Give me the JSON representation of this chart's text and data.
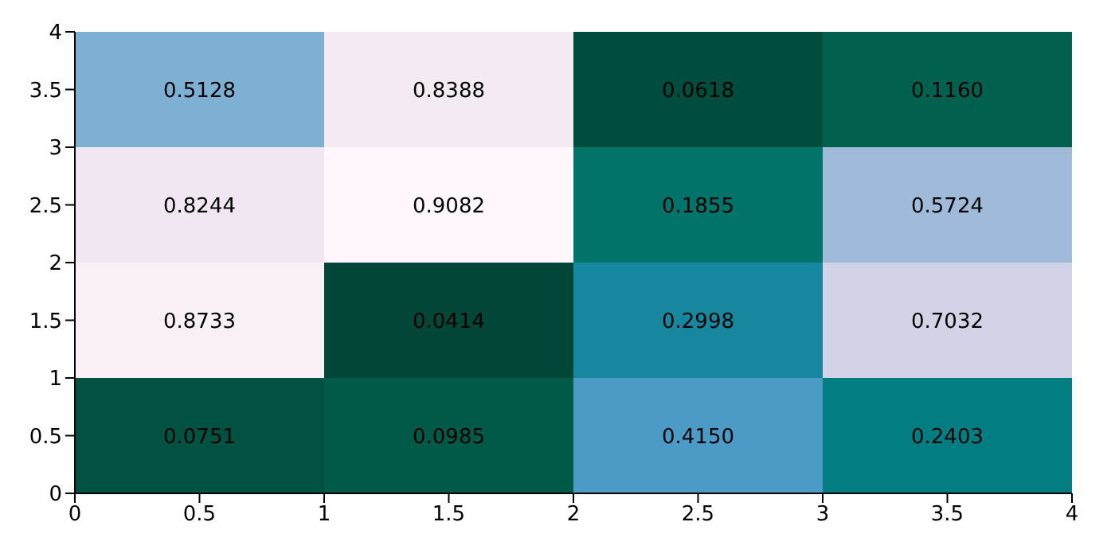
{
  "chart_data": {
    "type": "heatmap",
    "xlim": [
      0,
      4
    ],
    "xticks": [
      0,
      0.5,
      1,
      1.5,
      2,
      2.5,
      3,
      3.5,
      4
    ],
    "ylim": [
      0,
      4
    ],
    "yticks": [
      0,
      0.5,
      1,
      1.5,
      2,
      2.5,
      3,
      3.5,
      4
    ],
    "cells": [
      [
        0.5128,
        0.8388,
        0.0618,
        0.116
      ],
      [
        0.8244,
        0.9082,
        0.1855,
        0.5724
      ],
      [
        0.8733,
        0.0414,
        0.2998,
        0.7032
      ],
      [
        0.0751,
        0.0985,
        0.415,
        0.2403
      ]
    ],
    "cell_labels": [
      [
        "0.5128",
        "0.8388",
        "0.0618",
        "0.1160"
      ],
      [
        "0.8244",
        "0.9082",
        "0.1855",
        "0.5724"
      ],
      [
        "0.8733",
        "0.0414",
        "0.2998",
        "0.7032"
      ],
      [
        "0.0751",
        "0.0985",
        "0.4150",
        "0.2403"
      ]
    ],
    "data_labels": true
  }
}
